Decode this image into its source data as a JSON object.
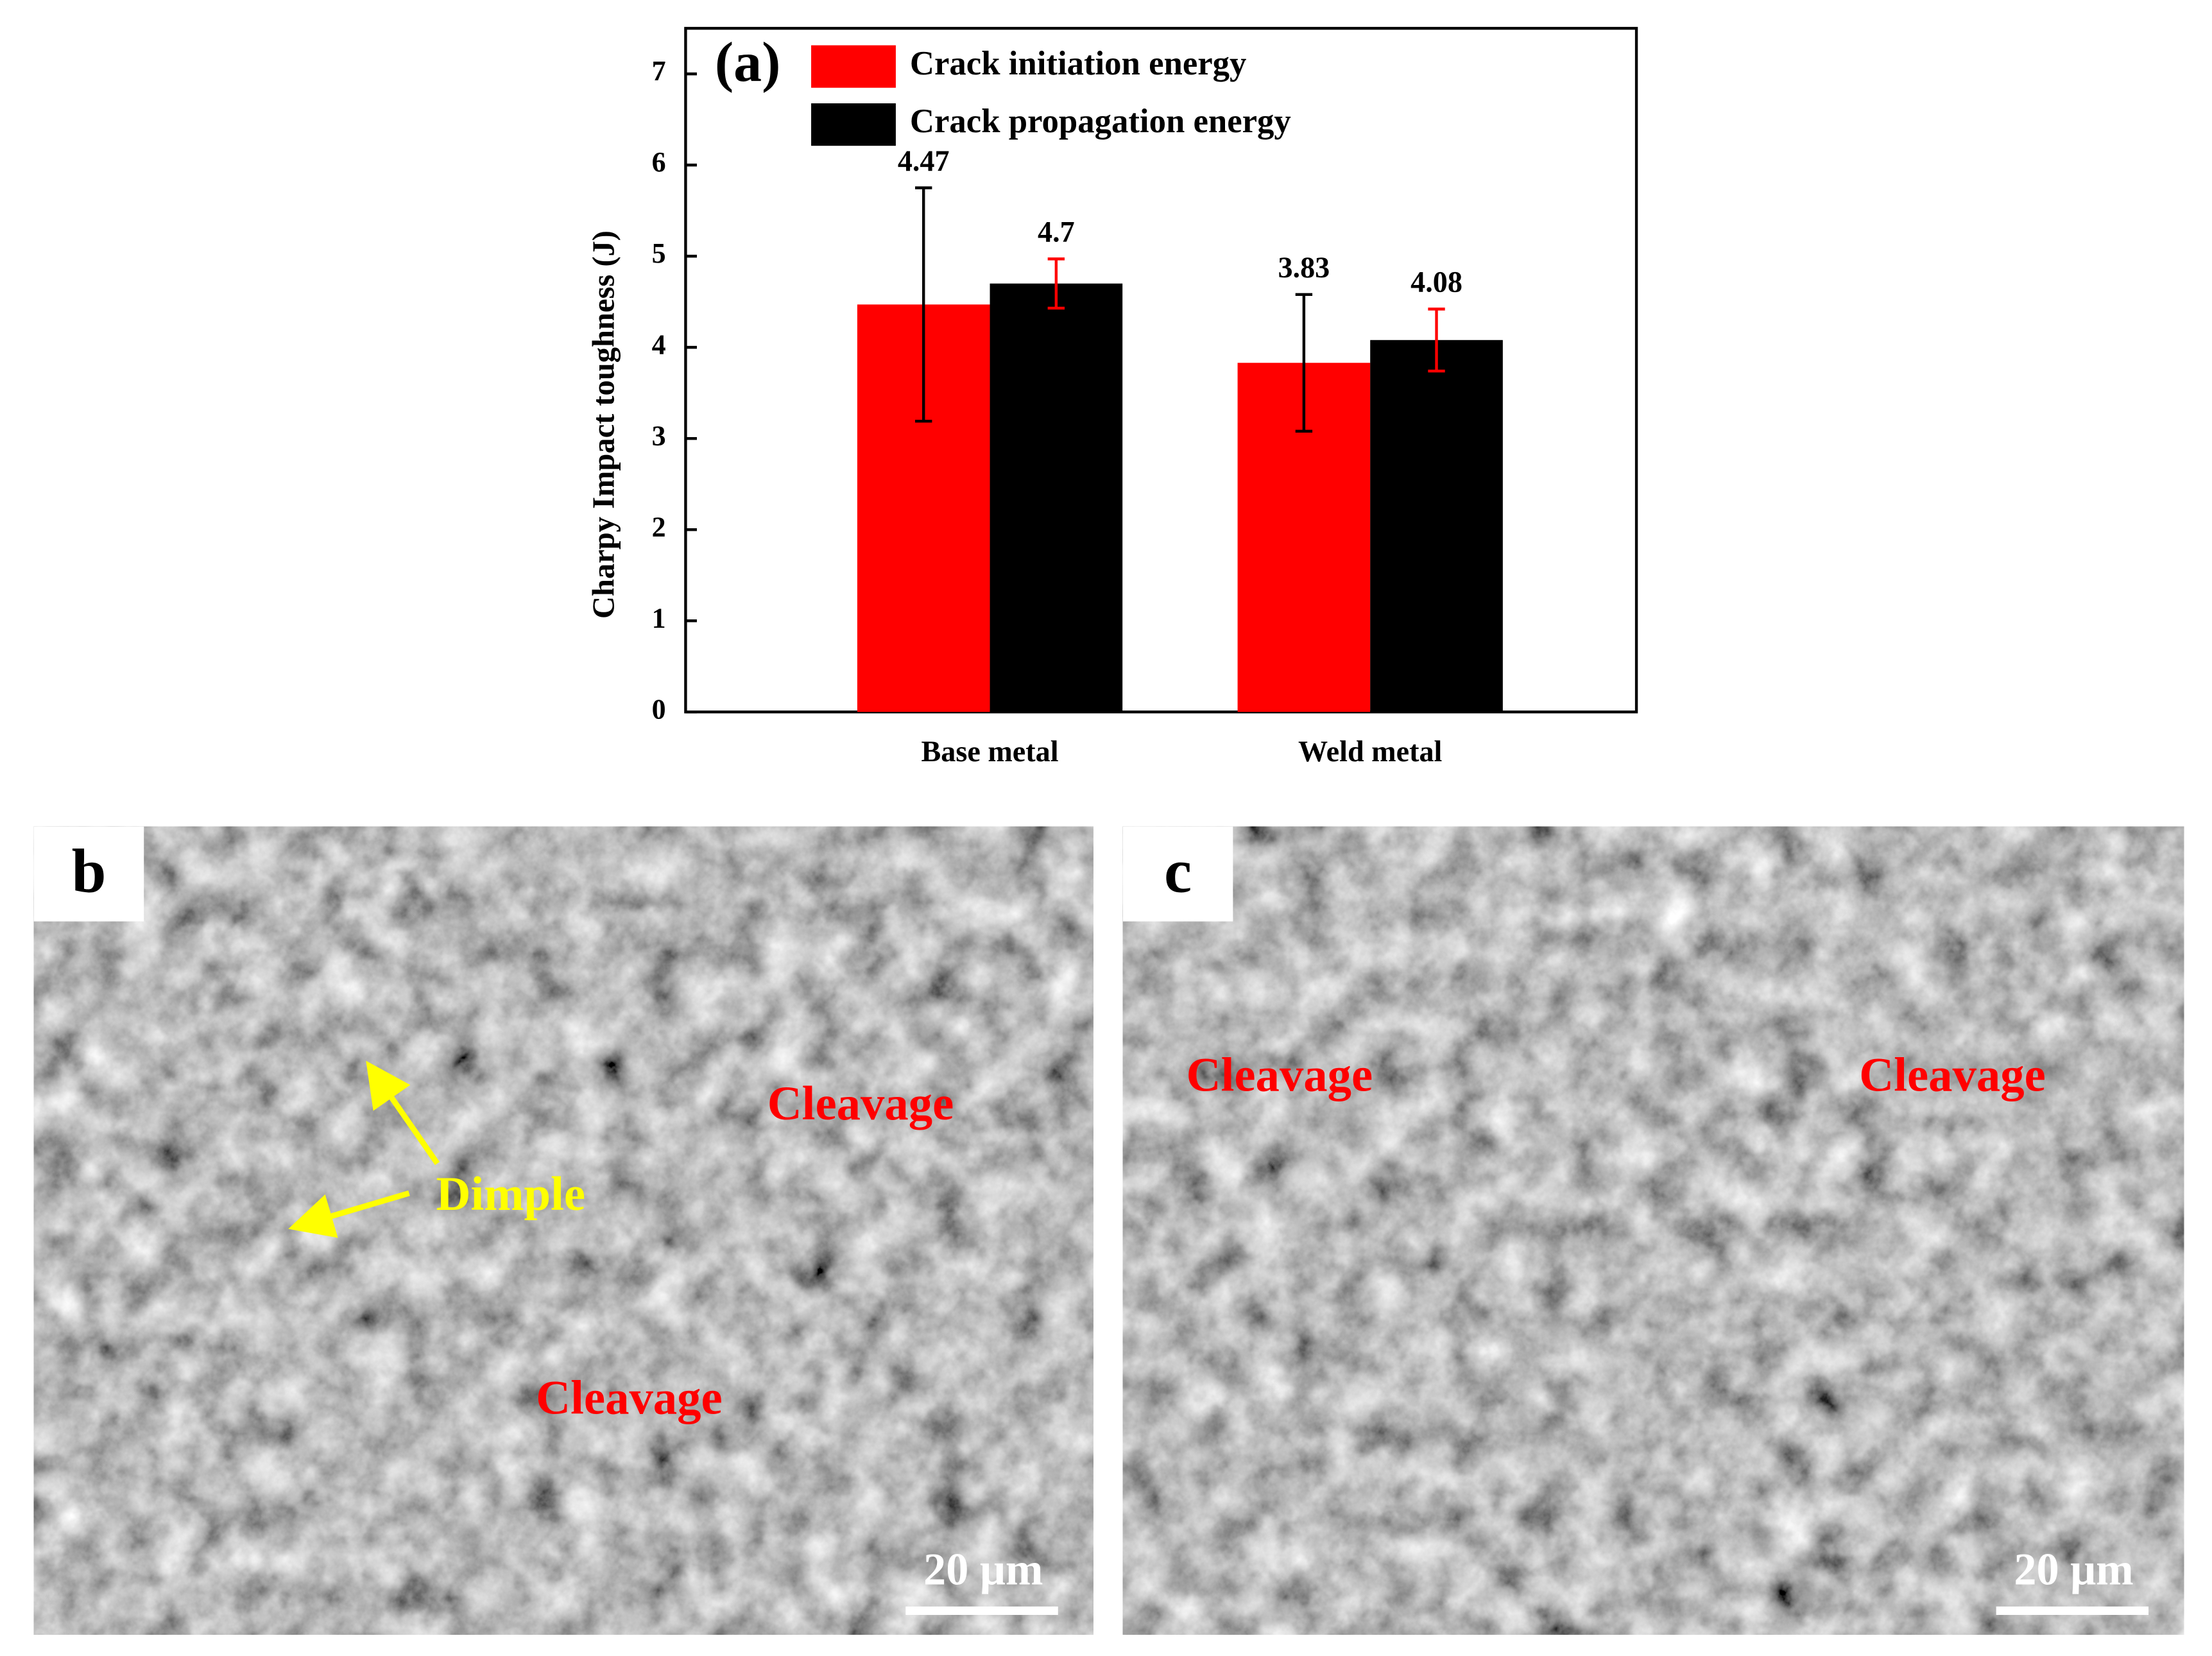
{
  "chart_data": {
    "type": "bar",
    "panel_label": "(a)",
    "ylabel": "Charpy Impact toughness (J)",
    "categories": [
      "Base metal",
      "Weld metal"
    ],
    "series": [
      {
        "name": "Crack initiation energy",
        "color": "#ff0000",
        "error_color": "#000000",
        "values": [
          4.47,
          3.83
        ],
        "errors": [
          1.28,
          0.75
        ]
      },
      {
        "name": "Crack propagation energy",
        "color": "#000000",
        "error_color": "#ff0000",
        "values": [
          4.7,
          4.08
        ],
        "errors": [
          0.27,
          0.34
        ]
      }
    ],
    "ylim": [
      0,
      7.5
    ],
    "yticks": [
      0,
      1,
      2,
      3,
      4,
      5,
      6,
      7
    ],
    "legend": "upper left"
  },
  "panels": [
    {
      "label": "b",
      "annotations": [
        {
          "text": "Dimple",
          "color": "#ffff00"
        },
        {
          "text": "Cleavage",
          "color": "#ff0000"
        },
        {
          "text": "Cleavage",
          "color": "#ff0000"
        }
      ],
      "scale_bar": "20 μm"
    },
    {
      "label": "c",
      "annotations": [
        {
          "text": "Cleavage",
          "color": "#ff0000"
        },
        {
          "text": "Cleavage",
          "color": "#ff0000"
        }
      ],
      "scale_bar": "20 μm"
    }
  ]
}
